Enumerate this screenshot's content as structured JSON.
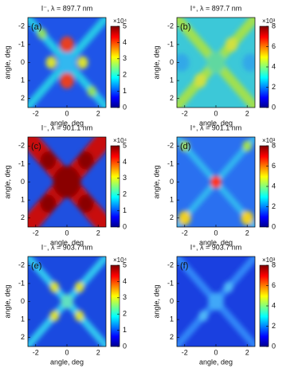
{
  "chart_data": [
    {
      "type": "heatmap",
      "title": "I⁻, λ = 897.7 nm",
      "panel_label": "(a)",
      "xlabel": "angle, deg",
      "ylabel": "angle, deg",
      "xlim": [
        -2.5,
        2.5
      ],
      "xticks": [
        -2,
        0,
        2
      ],
      "ylim": [
        -2.5,
        2.5
      ],
      "y_inverted": true,
      "yticks": [
        -2,
        -1,
        0,
        1,
        2
      ],
      "colorbar": {
        "lim": [
          0,
          5
        ],
        "ticks": [
          0,
          1,
          2,
          3,
          4,
          5
        ],
        "multiplier": "×10⁴"
      }
    },
    {
      "type": "heatmap",
      "title": "I⁺, λ = 897.7 nm",
      "panel_label": "(b)",
      "xlabel": "angle, deg",
      "ylabel": "angle, deg",
      "xlim": [
        -2.5,
        2.5
      ],
      "xticks": [
        -2,
        0,
        2
      ],
      "ylim": [
        -2.5,
        2.5
      ],
      "y_inverted": true,
      "yticks": [
        -2,
        -1,
        0,
        1,
        2
      ],
      "colorbar": {
        "lim": [
          0,
          8
        ],
        "ticks": [
          0,
          2,
          4,
          6,
          8
        ],
        "multiplier": "×10³"
      }
    },
    {
      "type": "heatmap",
      "title": "I⁻, λ = 901.1 nm",
      "panel_label": "(c)",
      "xlabel": "angle, deg",
      "ylabel": "angle, deg",
      "xlim": [
        -2.5,
        2.5
      ],
      "xticks": [
        -2,
        0,
        2
      ],
      "ylim": [
        -2.5,
        2.5
      ],
      "y_inverted": true,
      "yticks": [
        -2,
        -1,
        0,
        1,
        2
      ],
      "colorbar": {
        "lim": [
          0,
          5
        ],
        "ticks": [
          0,
          1,
          2,
          3,
          4,
          5
        ],
        "multiplier": "×10⁴"
      }
    },
    {
      "type": "heatmap",
      "title": "I⁺, λ = 901.1 nm",
      "panel_label": "(d)",
      "xlabel": "angle, deg",
      "ylabel": "angle, deg",
      "xlim": [
        -2.5,
        2.5
      ],
      "xticks": [
        -2,
        0,
        2
      ],
      "ylim": [
        -2.5,
        2.5
      ],
      "y_inverted": true,
      "yticks": [
        -2,
        -1,
        0,
        1,
        2
      ],
      "colorbar": {
        "lim": [
          0,
          8
        ],
        "ticks": [
          0,
          2,
          4,
          6,
          8
        ],
        "multiplier": "×10³"
      }
    },
    {
      "type": "heatmap",
      "title": "I⁻, λ = 903.7 nm",
      "panel_label": "(e)",
      "xlabel": "angle, deg",
      "ylabel": "angle, deg",
      "xlim": [
        -2.5,
        2.5
      ],
      "xticks": [
        -2,
        0,
        2
      ],
      "ylim": [
        -2.5,
        2.5
      ],
      "y_inverted": true,
      "yticks": [
        -2,
        -1,
        0,
        1,
        2
      ],
      "colorbar": {
        "lim": [
          0,
          5
        ],
        "ticks": [
          0,
          1,
          2,
          3,
          4,
          5
        ],
        "multiplier": "×10⁴"
      }
    },
    {
      "type": "heatmap",
      "title": "I⁺, λ = 903.7 nm",
      "panel_label": "(f)",
      "xlabel": "angle, deg",
      "ylabel": "angle, deg",
      "xlim": [
        -2.5,
        2.5
      ],
      "xticks": [
        -2,
        0,
        2
      ],
      "ylim": [
        -2.5,
        2.5
      ],
      "y_inverted": true,
      "yticks": [
        -2,
        -1,
        0,
        1,
        2
      ],
      "colorbar": {
        "lim": [
          0,
          8
        ],
        "ticks": [
          0,
          2,
          4,
          6,
          8
        ],
        "multiplier": "×10³"
      }
    }
  ]
}
